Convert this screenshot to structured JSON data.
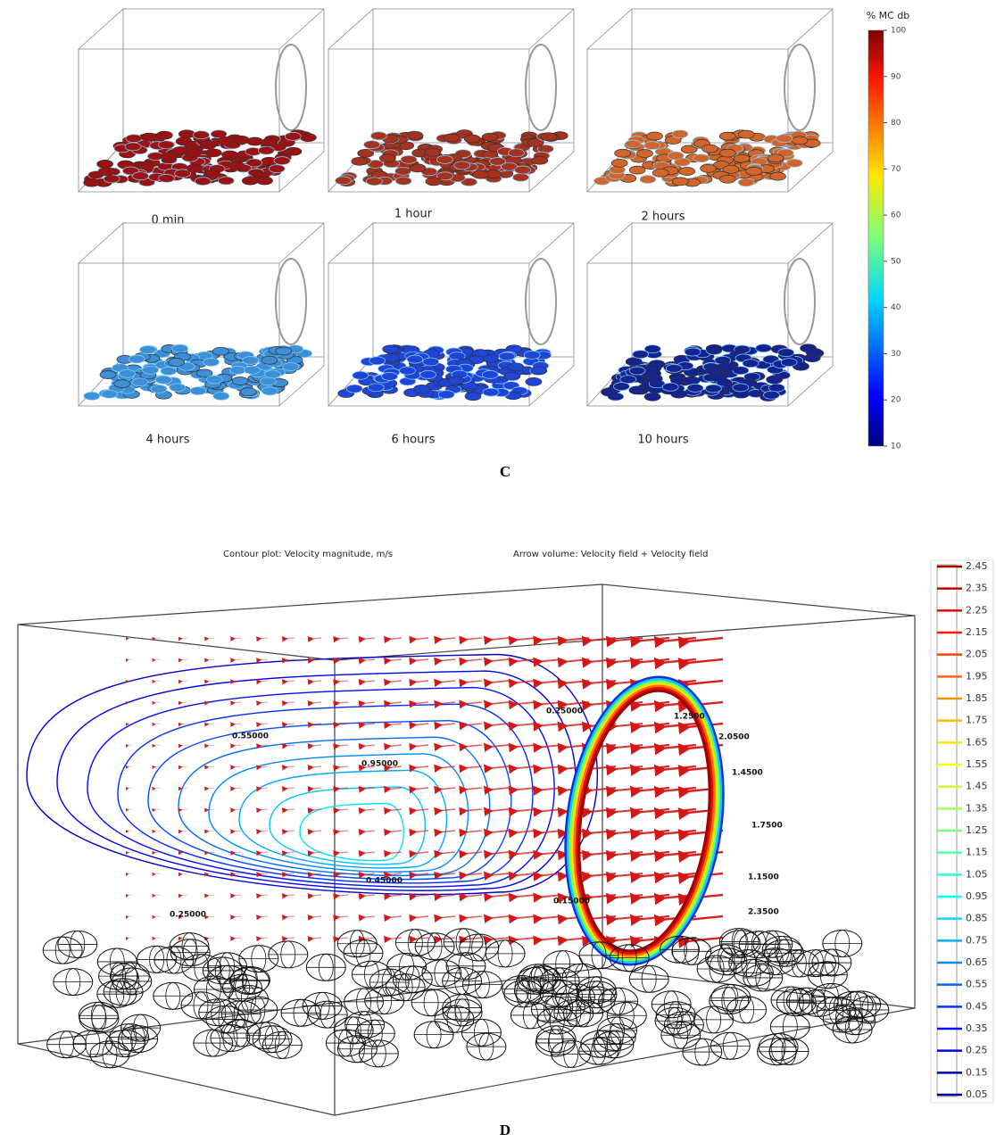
{
  "panel_c": {
    "label": "C",
    "snapshots": [
      {
        "label": "0 min",
        "color": "#9b1212"
      },
      {
        "label": "1 hour",
        "color": "#a5321e"
      },
      {
        "label": "2 hours",
        "color": "#d2662a"
      },
      {
        "label": "4 hours",
        "color": "#3f8fd6"
      },
      {
        "label": "6 hours",
        "color": "#1f45d8"
      },
      {
        "label": "10 hours",
        "color": "#14238f"
      }
    ],
    "colorbar": {
      "title": "% MC db",
      "ticks": [
        10,
        20,
        30,
        40,
        50,
        60,
        70,
        80,
        90,
        100
      ],
      "lim": [
        10,
        100
      ]
    }
  },
  "panel_d": {
    "label": "D",
    "title_left": "Contour plot: Velocity magnitude, m/s",
    "title_right": "Arrow volume: Velocity field + Velocity field",
    "contour_labels": [
      "0.25000",
      "0.55000",
      "0.95000",
      "0.45000",
      "0.25000",
      "0.15000",
      "1.2500",
      "2.0500",
      "1.4500",
      "1.7500",
      "1.1500",
      "2.3500"
    ],
    "colorbar": {
      "ticks": [
        0.05,
        0.15,
        0.25,
        0.35,
        0.45,
        0.55,
        0.65,
        0.75,
        0.85,
        0.95,
        1.05,
        1.15,
        1.25,
        1.35,
        1.45,
        1.55,
        1.65,
        1.75,
        1.85,
        1.95,
        2.05,
        2.15,
        2.25,
        2.35,
        2.45
      ],
      "lim": [
        0.05,
        2.45
      ]
    }
  }
}
